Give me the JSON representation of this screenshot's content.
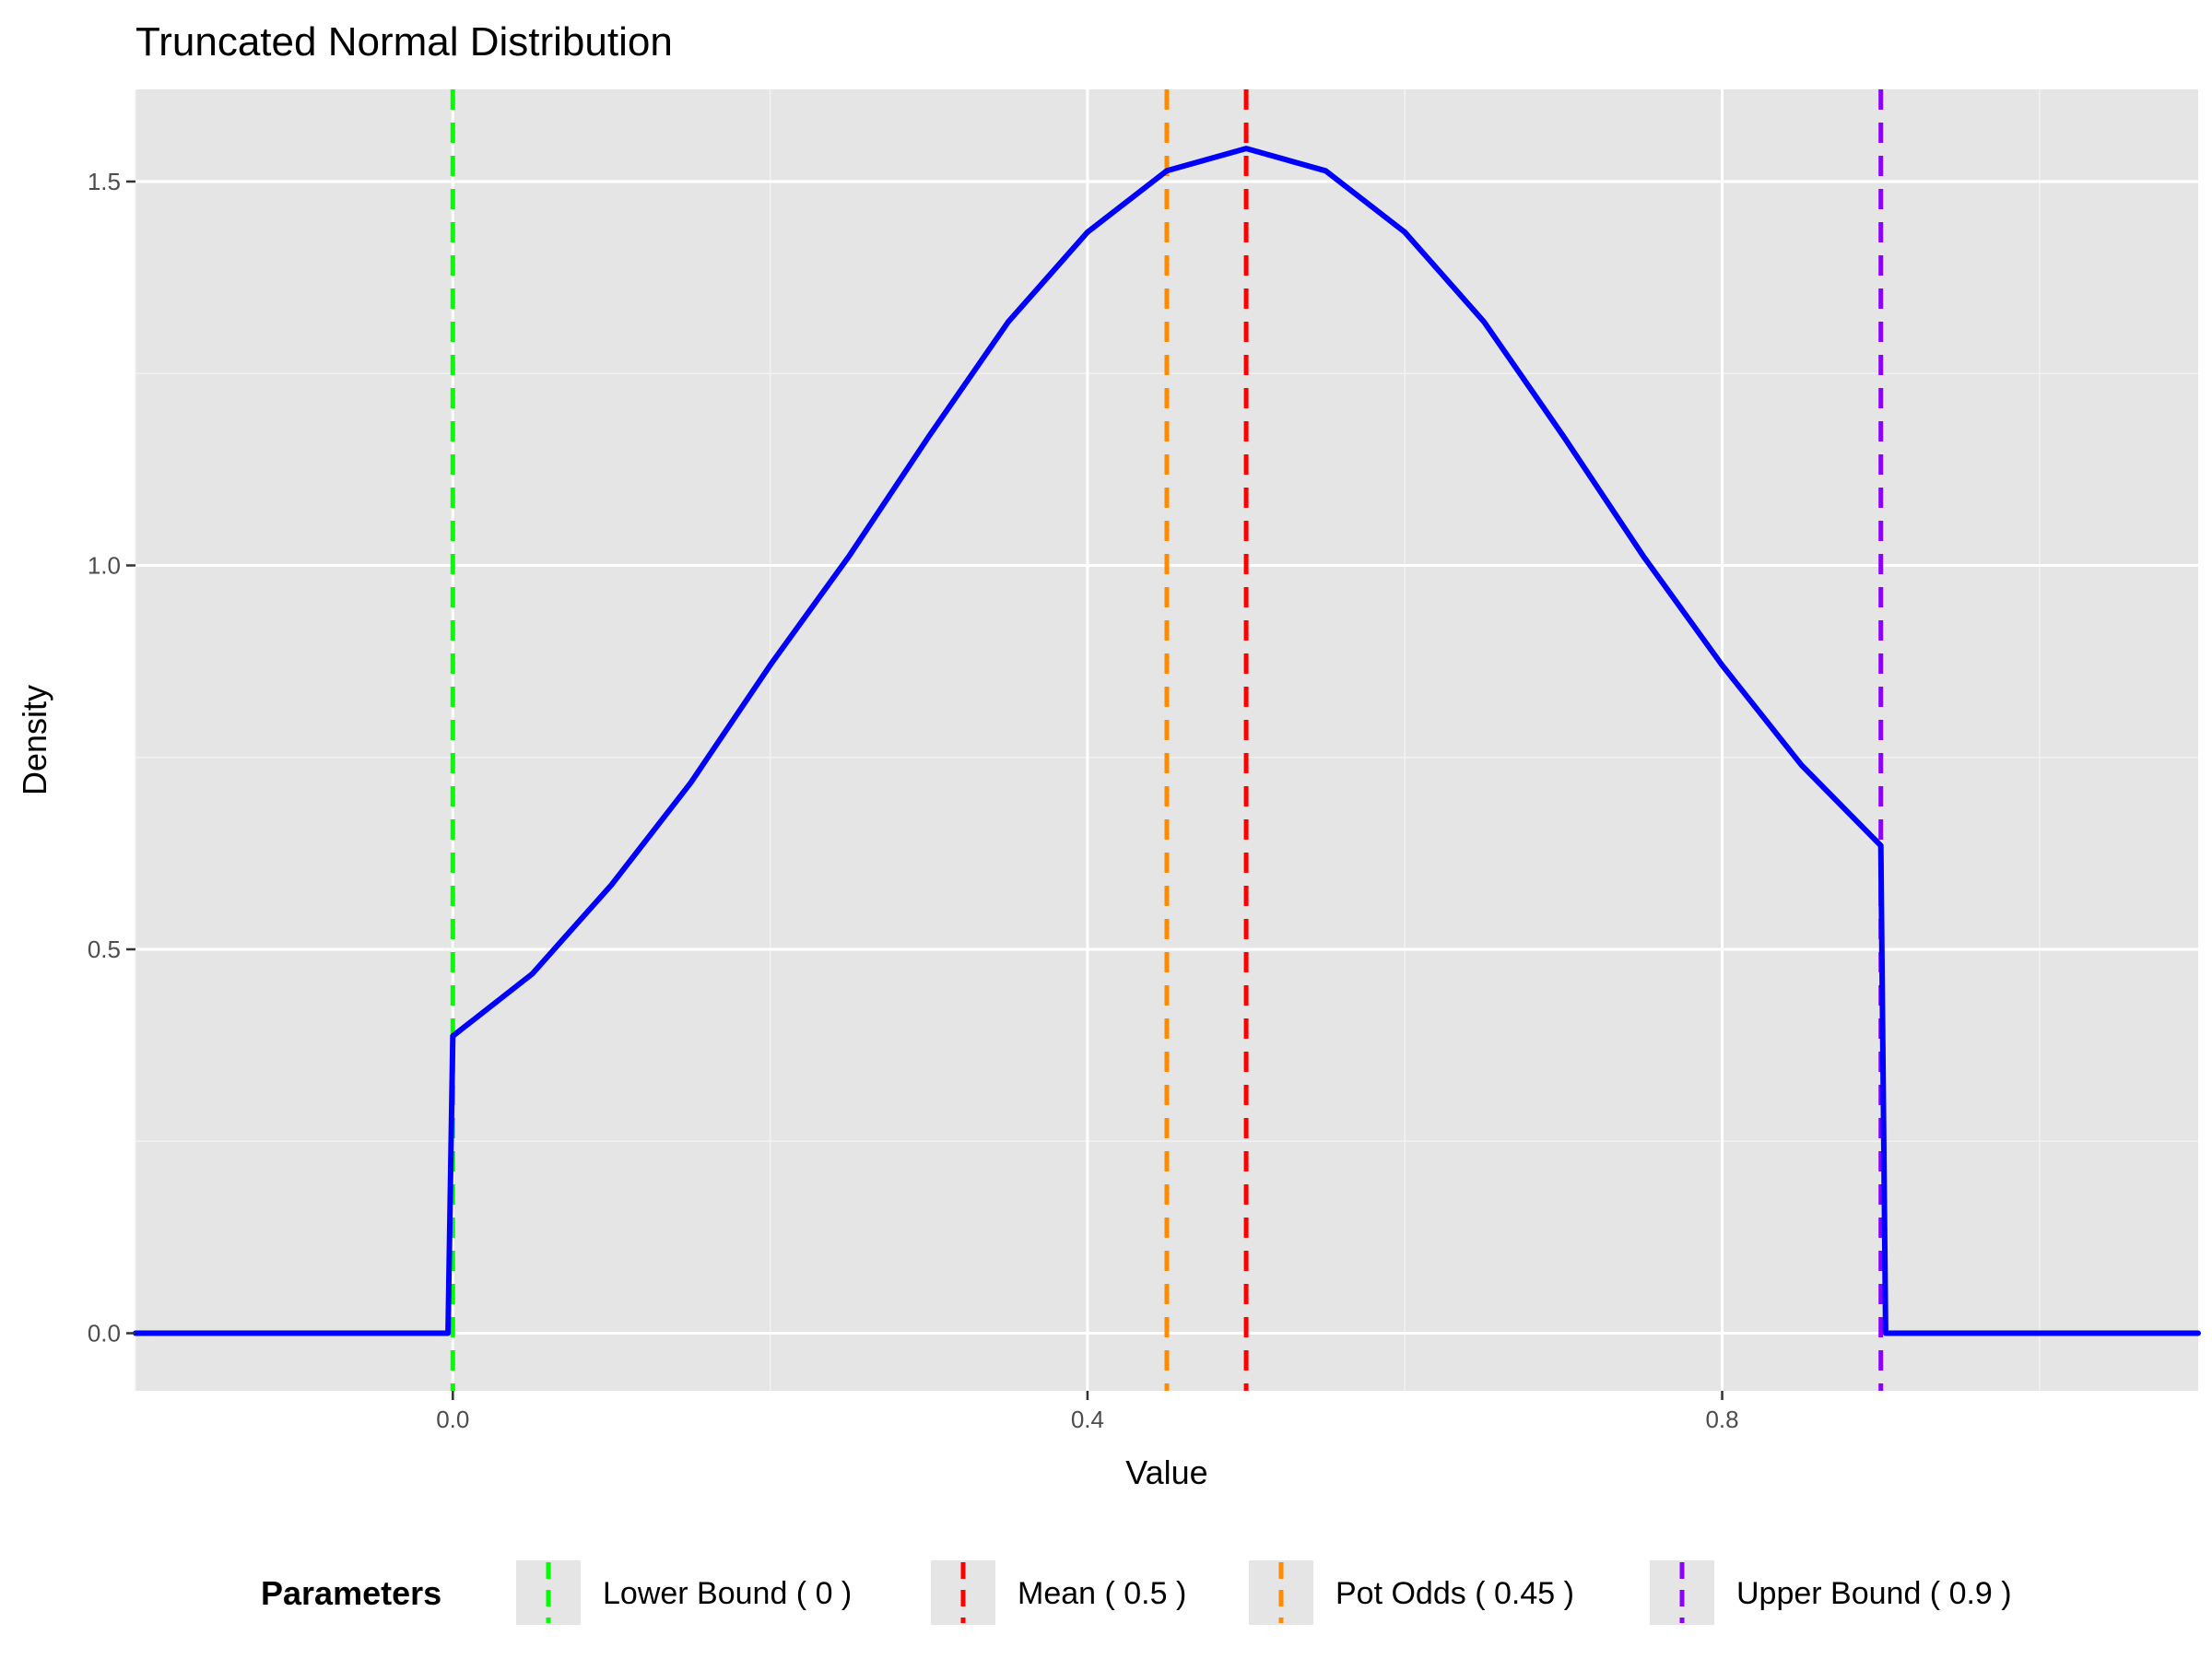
{
  "chart_data": {
    "type": "line",
    "title": "Truncated Normal Distribution",
    "xlabel": "Value",
    "ylabel": "Density",
    "xlim": [
      -0.2,
      1.1
    ],
    "ylim": [
      -0.075,
      1.62
    ],
    "x_ticks": [
      {
        "value": 0.0,
        "label": "0.0"
      },
      {
        "value": 0.4,
        "label": "0.4"
      },
      {
        "value": 0.8,
        "label": "0.8"
      }
    ],
    "y_ticks": [
      {
        "value": 0.0,
        "label": "0.0"
      },
      {
        "value": 0.5,
        "label": "0.5"
      },
      {
        "value": 1.0,
        "label": "1.0"
      },
      {
        "value": 1.5,
        "label": "1.5"
      }
    ],
    "grid": true,
    "series": [
      {
        "color": "#0000ff",
        "x": [
          -0.2,
          -0.003,
          0.0,
          0.05,
          0.1,
          0.15,
          0.2,
          0.25,
          0.3,
          0.35,
          0.4,
          0.45,
          0.5,
          0.55,
          0.6,
          0.65,
          0.7,
          0.75,
          0.8,
          0.85,
          0.9,
          0.903,
          1.1
        ],
        "y": [
          0.0,
          0.0,
          0.387,
          0.468,
          0.584,
          0.717,
          0.87,
          1.013,
          1.168,
          1.317,
          1.434,
          1.514,
          1.543,
          1.514,
          1.434,
          1.317,
          1.168,
          1.013,
          0.87,
          0.74,
          0.635,
          0.0,
          0.0
        ]
      }
    ],
    "reference_lines": [
      {
        "label": "Lower Bound ( 0 )",
        "x": 0.0,
        "color": "#00ff00",
        "style": "dashed"
      },
      {
        "label": "Mean ( 0.5 )",
        "x": 0.5,
        "color": "#ff0000",
        "style": "dashed"
      },
      {
        "label": "Pot Odds ( 0.45 )",
        "x": 0.45,
        "color": "#ff8c00",
        "style": "dashed"
      },
      {
        "label": "Upper Bound ( 0.9 )",
        "x": 0.9,
        "color": "#8b00ff",
        "style": "dashed"
      }
    ],
    "legend": {
      "title": "Parameters",
      "placement": "bottom",
      "items": [
        {
          "label": "Lower Bound ( 0 )",
          "color": "#00ff00"
        },
        {
          "label": "Mean ( 0.5 )",
          "color": "#ff0000"
        },
        {
          "label": "Pot Odds ( 0.45 )",
          "color": "#ff8c00"
        },
        {
          "label": "Upper Bound ( 0.9 )",
          "color": "#8b00ff"
        }
      ]
    }
  }
}
